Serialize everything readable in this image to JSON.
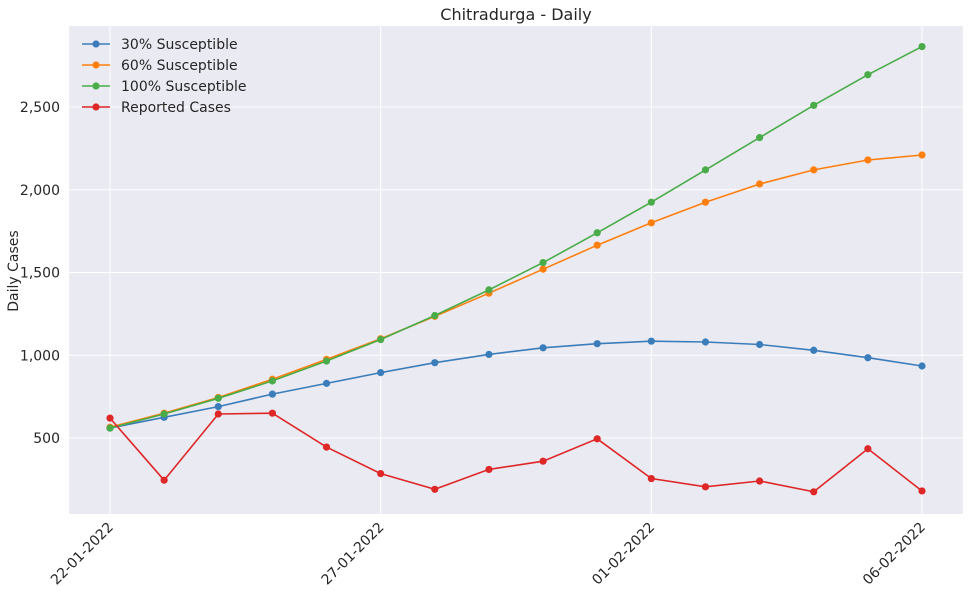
{
  "chart_data": {
    "type": "line",
    "title": "Chitradurga - Daily",
    "xlabel": "",
    "ylabel": "Daily Cases",
    "x": [
      "22-01-2022",
      "23-01-2022",
      "24-01-2022",
      "25-01-2022",
      "26-01-2022",
      "27-01-2022",
      "28-01-2022",
      "29-01-2022",
      "30-01-2022",
      "31-01-2022",
      "01-02-2022",
      "02-02-2022",
      "03-02-2022",
      "04-02-2022",
      "05-02-2022",
      "06-02-2022"
    ],
    "x_tick_labels": [
      "22-01-2022",
      "27-01-2022",
      "01-02-2022",
      "06-02-2022"
    ],
    "y_tick_labels": [
      "500",
      "1,000",
      "1,500",
      "2,000",
      "2,500"
    ],
    "y_ticks": [
      500,
      1000,
      1500,
      2000,
      2500
    ],
    "ylim": [
      30,
      3000
    ],
    "grid": true,
    "legend_position": "top-left",
    "series": [
      {
        "name": "30% Susceptible",
        "color": "#3b7dba",
        "values": [
          560,
          625,
          690,
          765,
          830,
          895,
          955,
          1005,
          1045,
          1070,
          1085,
          1080,
          1065,
          1030,
          985,
          935
        ]
      },
      {
        "name": "60% Susceptible",
        "color": "#ff7f0e",
        "values": [
          565,
          650,
          745,
          855,
          975,
          1100,
          1235,
          1375,
          1520,
          1665,
          1800,
          1925,
          2035,
          2120,
          2180,
          2210
        ]
      },
      {
        "name": "100% Susceptible",
        "color": "#4aac48",
        "values": [
          560,
          645,
          740,
          845,
          965,
          1095,
          1240,
          1395,
          1560,
          1740,
          1925,
          2120,
          2315,
          2510,
          2695,
          2865
        ]
      },
      {
        "name": "Reported Cases",
        "color": "#de2727",
        "values": [
          620,
          245,
          645,
          650,
          445,
          285,
          190,
          310,
          360,
          495,
          255,
          205,
          240,
          175,
          435,
          180
        ]
      }
    ]
  }
}
